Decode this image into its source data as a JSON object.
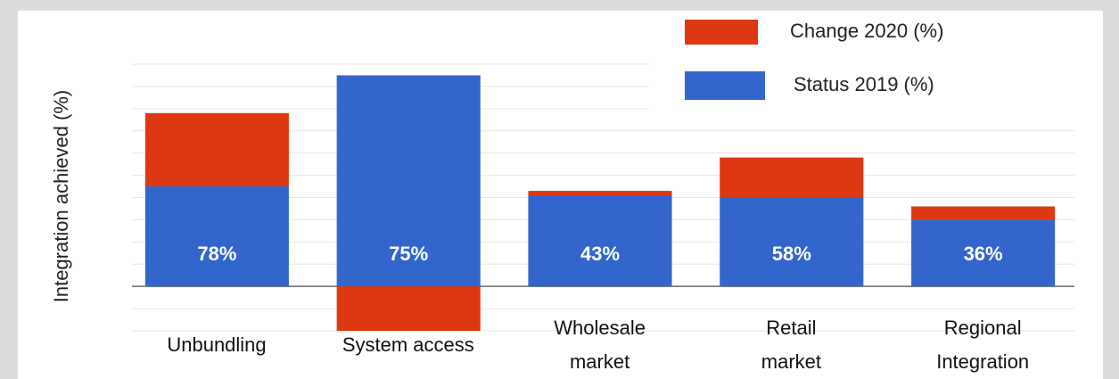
{
  "chart_data": {
    "type": "stacked_bar",
    "y_label": "Integration achieved (%)",
    "categories": [
      "Unbundling",
      "System access",
      "Wholesale\nmarket",
      "Retail\nmarket",
      "Regional\nIntegration"
    ],
    "series": [
      {
        "name": "Status 2019 (%)",
        "color": "#3366cc",
        "values": [
          45,
          95,
          41,
          40,
          30
        ]
      },
      {
        "name": "Change 2020 (%)",
        "color": "#dc3912",
        "values": [
          33,
          -20,
          2,
          18,
          6
        ]
      }
    ],
    "total_labels": [
      "78%",
      "75%",
      "43%",
      "58%",
      "36%"
    ],
    "ylim": [
      -20,
      100
    ],
    "yticks": [
      -20,
      -10,
      0,
      10,
      20,
      30,
      40,
      50,
      60,
      70,
      80,
      90,
      100
    ],
    "grid": true
  }
}
